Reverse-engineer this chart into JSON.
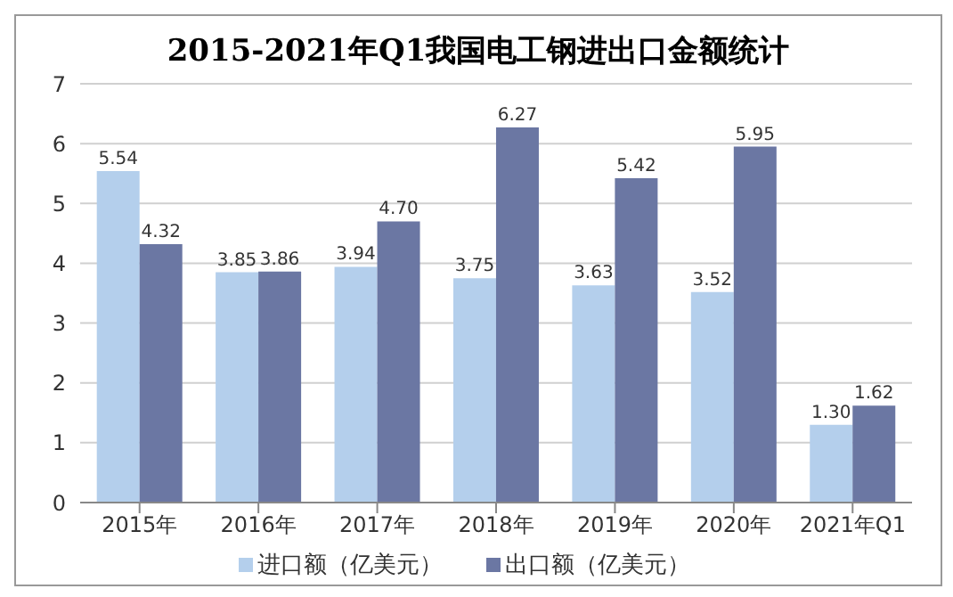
{
  "chart_data": {
    "type": "bar",
    "title": "2015-2021年Q1我国电工钢进出口金额统计",
    "categories": [
      "2015年",
      "2016年",
      "2017年",
      "2018年",
      "2019年",
      "2020年",
      "2021年Q1"
    ],
    "series": [
      {
        "name": "进口额（亿美元）",
        "color": "#b4cfec",
        "values": [
          5.54,
          3.85,
          3.94,
          3.75,
          3.63,
          3.52,
          1.3
        ],
        "value_labels": [
          "5.54",
          "3.85",
          "3.94",
          "3.75",
          "3.63",
          "3.52",
          "1.30"
        ]
      },
      {
        "name": "出口额（亿美元）",
        "color": "#6b77a3",
        "values": [
          4.32,
          3.86,
          4.7,
          6.27,
          5.42,
          5.95,
          1.62
        ],
        "value_labels": [
          "4.32",
          "3.86",
          "4.70",
          "6.27",
          "5.42",
          "5.95",
          "1.62"
        ]
      }
    ],
    "ylim": [
      0,
      7
    ],
    "yticks": [
      0,
      1,
      2,
      3,
      4,
      5,
      6,
      7
    ],
    "grid": "y",
    "legend": "bottom"
  }
}
